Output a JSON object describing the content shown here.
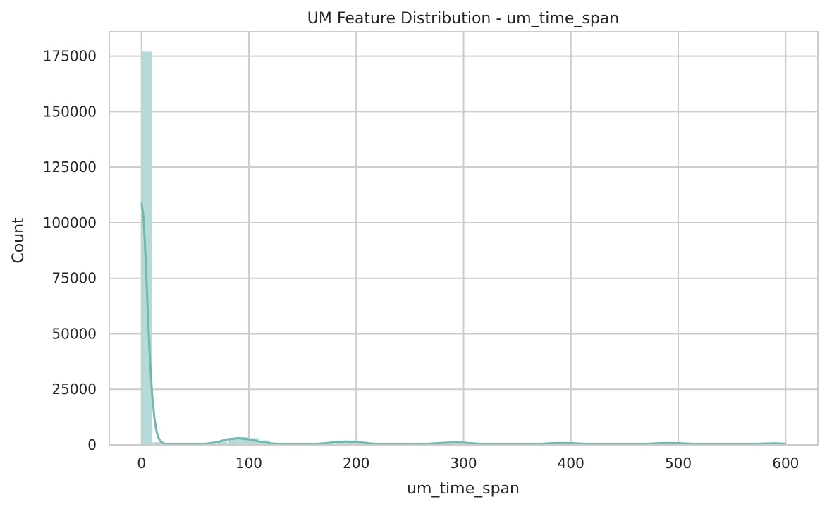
{
  "chart_data": {
    "type": "bar",
    "title": "UM Feature Distribution - um_time_span",
    "xlabel": "um_time_span",
    "ylabel": "Count",
    "xlim": [
      -30,
      630
    ],
    "ylim": [
      0,
      186000
    ],
    "xticks": [
      0,
      100,
      200,
      300,
      400,
      500,
      600
    ],
    "xtick_labels": [
      "0",
      "100",
      "200",
      "300",
      "400",
      "500",
      "600"
    ],
    "yticks": [
      0,
      25000,
      50000,
      75000,
      100000,
      125000,
      150000,
      175000
    ],
    "ytick_labels": [
      "0",
      "25000",
      "50000",
      "75000",
      "100000",
      "125000",
      "150000",
      "175000"
    ],
    "grid": true,
    "colors": {
      "bar": "#b4dbd8",
      "kde": "#73b6ad",
      "grid": "#cccccc",
      "spine": "#cccccc"
    },
    "histogram": {
      "bin_edges": [
        0,
        10,
        20,
        30,
        40,
        50,
        60,
        70,
        80,
        90,
        100,
        110,
        120,
        130,
        140,
        150,
        160,
        170,
        180,
        190,
        200,
        210,
        220,
        230,
        240,
        250,
        260,
        270,
        280,
        290,
        300,
        310,
        320,
        330,
        340,
        350,
        360,
        370,
        380,
        390,
        400,
        410,
        420,
        430,
        440,
        450,
        460,
        470,
        480,
        490,
        500,
        510,
        520,
        530,
        540,
        550,
        560,
        570,
        580,
        590,
        600
      ],
      "counts": [
        177000,
        1200,
        300,
        200,
        200,
        300,
        700,
        1500,
        3000,
        3500,
        3000,
        2000,
        1000,
        500,
        300,
        300,
        400,
        800,
        1500,
        2000,
        1500,
        800,
        400,
        300,
        300,
        300,
        400,
        700,
        1200,
        1500,
        1200,
        700,
        400,
        300,
        300,
        300,
        400,
        600,
        900,
        1200,
        1000,
        600,
        400,
        300,
        300,
        300,
        400,
        600,
        900,
        1100,
        1000,
        600,
        400,
        300,
        300,
        300,
        400,
        500,
        700,
        900
      ]
    },
    "kde": {
      "x": [
        0,
        2,
        4,
        6,
        8,
        10,
        12,
        14,
        16,
        18,
        20,
        22,
        25,
        30,
        40,
        50,
        60,
        70,
        80,
        90,
        100,
        110,
        120,
        130,
        140,
        150,
        160,
        170,
        180,
        190,
        200,
        210,
        220,
        230,
        240,
        250,
        260,
        270,
        280,
        290,
        300,
        310,
        320,
        330,
        340,
        350,
        360,
        370,
        380,
        390,
        400,
        410,
        420,
        430,
        440,
        450,
        460,
        470,
        480,
        490,
        500,
        510,
        520,
        530,
        540,
        550,
        560,
        570,
        580,
        590,
        600
      ],
      "y": [
        109000,
        102000,
        82000,
        58000,
        37000,
        22000,
        12000,
        6000,
        3000,
        1500,
        800,
        500,
        300,
        250,
        200,
        250,
        500,
        1200,
        2500,
        3000,
        2500,
        1500,
        700,
        350,
        250,
        250,
        350,
        700,
        1200,
        1500,
        1300,
        800,
        400,
        250,
        200,
        200,
        300,
        600,
        900,
        1100,
        1000,
        650,
        350,
        220,
        200,
        200,
        280,
        450,
        700,
        850,
        800,
        550,
        300,
        200,
        180,
        200,
        280,
        450,
        700,
        850,
        800,
        550,
        300,
        200,
        180,
        200,
        280,
        420,
        600,
        700,
        500
      ]
    }
  }
}
